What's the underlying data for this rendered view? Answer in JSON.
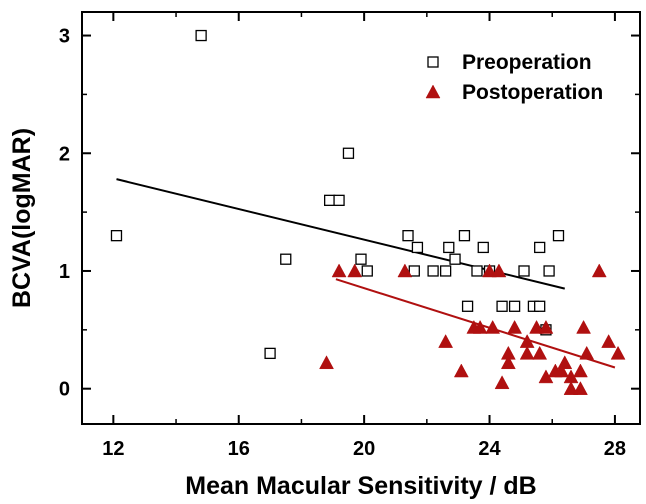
{
  "chart_data": {
    "type": "scatter",
    "xlabel": "Mean Macular Sensitivity / dB",
    "ylabel": "BCVA(logMAR)",
    "xlim": [
      11,
      28.8
    ],
    "ylim": [
      -0.3,
      3.2
    ],
    "x_ticks": [
      12,
      16,
      20,
      24,
      28
    ],
    "y_ticks": [
      0,
      1,
      2,
      3
    ],
    "x_tick_labels": [
      "12",
      "16",
      "20",
      "24",
      "28"
    ],
    "y_tick_labels": [
      "0",
      "1",
      "2",
      "3"
    ],
    "grid": false,
    "legend_position": "top-right",
    "series": [
      {
        "name": "Preoperation",
        "marker": "open-square",
        "color": "#000000",
        "points": [
          [
            12.1,
            1.3
          ],
          [
            14.8,
            3.0
          ],
          [
            17.0,
            0.3
          ],
          [
            17.5,
            1.1
          ],
          [
            18.9,
            1.6
          ],
          [
            19.2,
            1.6
          ],
          [
            19.5,
            2.0
          ],
          [
            19.9,
            1.1
          ],
          [
            20.1,
            1.0
          ],
          [
            21.4,
            1.3
          ],
          [
            21.7,
            1.2
          ],
          [
            21.6,
            1.0
          ],
          [
            22.2,
            1.0
          ],
          [
            22.6,
            1.0
          ],
          [
            22.7,
            1.2
          ],
          [
            22.9,
            1.1
          ],
          [
            23.2,
            1.3
          ],
          [
            23.3,
            0.7
          ],
          [
            23.6,
            1.0
          ],
          [
            23.8,
            1.2
          ],
          [
            24.0,
            1.0
          ],
          [
            24.4,
            0.7
          ],
          [
            24.8,
            0.7
          ],
          [
            25.1,
            1.0
          ],
          [
            25.4,
            0.7
          ],
          [
            25.6,
            0.7
          ],
          [
            25.6,
            1.2
          ],
          [
            25.8,
            0.5
          ],
          [
            25.9,
            1.0
          ],
          [
            26.2,
            1.3
          ]
        ],
        "fit_line": [
          [
            12.1,
            1.78
          ],
          [
            26.4,
            0.85
          ]
        ]
      },
      {
        "name": "Postoperation",
        "marker": "filled-triangle",
        "color": "#b01010",
        "points": [
          [
            18.8,
            0.22
          ],
          [
            19.2,
            1.0
          ],
          [
            19.7,
            1.0
          ],
          [
            21.3,
            1.0
          ],
          [
            22.6,
            0.4
          ],
          [
            23.1,
            0.15
          ],
          [
            23.5,
            0.52
          ],
          [
            23.7,
            0.52
          ],
          [
            24.0,
            1.0
          ],
          [
            24.1,
            0.52
          ],
          [
            24.3,
            1.0
          ],
          [
            24.4,
            0.05
          ],
          [
            24.6,
            0.3
          ],
          [
            24.6,
            0.22
          ],
          [
            24.8,
            0.52
          ],
          [
            25.2,
            0.4
          ],
          [
            25.2,
            0.3
          ],
          [
            25.5,
            0.52
          ],
          [
            25.6,
            0.3
          ],
          [
            25.8,
            0.52
          ],
          [
            25.8,
            0.1
          ],
          [
            26.1,
            0.15
          ],
          [
            26.3,
            0.15
          ],
          [
            26.4,
            0.22
          ],
          [
            26.6,
            0.0
          ],
          [
            26.6,
            0.1
          ],
          [
            26.9,
            0.15
          ],
          [
            26.9,
            0.0
          ],
          [
            27.0,
            0.52
          ],
          [
            27.1,
            0.3
          ],
          [
            27.5,
            1.0
          ],
          [
            27.8,
            0.4
          ],
          [
            28.1,
            0.3
          ]
        ],
        "fit_line": [
          [
            19.1,
            0.93
          ],
          [
            28.0,
            0.18
          ]
        ]
      }
    ]
  }
}
